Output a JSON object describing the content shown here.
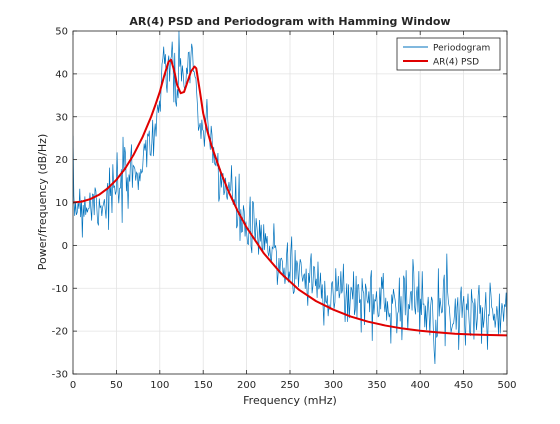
{
  "chart_data": {
    "type": "line",
    "title": "AR(4) PSD and Periodogram with Hamming Window",
    "xlabel": "Frequency (mHz)",
    "ylabel": "Power/frequency (dB/Hz)",
    "xlim": [
      0,
      500
    ],
    "ylim": [
      -30,
      50
    ],
    "xticks": [
      0,
      50,
      100,
      150,
      200,
      250,
      300,
      350,
      400,
      450,
      500
    ],
    "yticks": [
      -30,
      -20,
      -10,
      0,
      10,
      20,
      30,
      40,
      50
    ],
    "grid": true,
    "legend_position": "top-right",
    "series": [
      {
        "name": "Periodogram",
        "color": "#0072BD",
        "style": "noisy",
        "trend": {
          "x": [
            0,
            20,
            40,
            60,
            80,
            95,
            105,
            110,
            115,
            120,
            125,
            130,
            135,
            140,
            145,
            150,
            160,
            175,
            190,
            200,
            225,
            250,
            275,
            300,
            325,
            350,
            375,
            400,
            425,
            450,
            475,
            500
          ],
          "y": [
            10,
            10,
            11,
            14,
            20,
            28,
            38,
            44,
            40,
            36,
            38,
            42,
            43,
            40,
            30,
            26,
            22,
            14,
            8,
            4,
            -1,
            -5,
            -8,
            -11,
            -12,
            -13,
            -13,
            -13,
            -14,
            -15,
            -16,
            -16
          ]
        },
        "spread_db": 4,
        "range": [
          -28,
          50
        ]
      },
      {
        "name": "AR(4) PSD",
        "color": "#D95319",
        "x": [
          0,
          10,
          20,
          30,
          40,
          50,
          60,
          70,
          80,
          90,
          95,
          100,
          105,
          110,
          113,
          117,
          120,
          124,
          128,
          132,
          136,
          140,
          142,
          146,
          150,
          155,
          160,
          170,
          180,
          190,
          200,
          220,
          240,
          260,
          280,
          300,
          320,
          340,
          360,
          380,
          400,
          420,
          440,
          460,
          480,
          500
        ],
        "y": [
          10,
          10.2,
          10.8,
          11.8,
          13.3,
          15.3,
          17.9,
          21.2,
          25.2,
          30.0,
          32.8,
          35.8,
          39.5,
          42.8,
          43.3,
          40.4,
          37.4,
          35.5,
          35.8,
          38.2,
          40.6,
          41.7,
          41.3,
          36.2,
          30.8,
          26.5,
          23.0,
          17.2,
          12.2,
          7.9,
          4.2,
          -1.9,
          -6.6,
          -10.3,
          -13.0,
          -15.0,
          -16.6,
          -17.8,
          -18.7,
          -19.4,
          -19.9,
          -20.3,
          -20.6,
          -20.8,
          -20.9,
          -21.0
        ]
      }
    ]
  }
}
